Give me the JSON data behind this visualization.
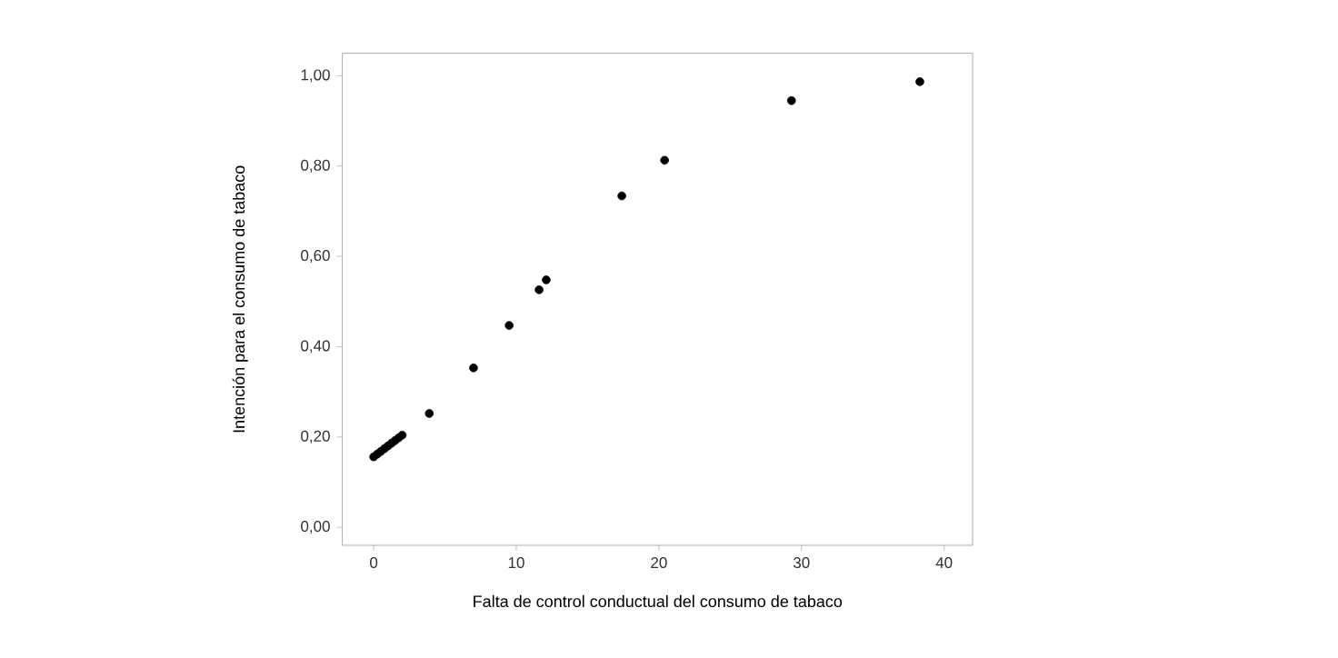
{
  "chart_data": {
    "type": "scatter",
    "xlabel": "Falta de control conductual del consumo de tabaco",
    "ylabel": "Intención para el consumo de tabaco",
    "x": [
      0,
      0.25,
      0.5,
      0.75,
      1.0,
      1.25,
      1.5,
      1.75,
      2.0,
      3.9,
      7.0,
      9.5,
      11.6,
      12.1,
      17.4,
      20.4,
      29.3,
      38.3
    ],
    "values": [
      0.156,
      0.162,
      0.168,
      0.174,
      0.18,
      0.186,
      0.192,
      0.198,
      0.204,
      0.252,
      0.353,
      0.447,
      0.526,
      0.548,
      0.734,
      0.813,
      0.945,
      0.987
    ],
    "color": "#000000",
    "marker": "circle",
    "xlim": [
      -2.2,
      42
    ],
    "xticks": [
      0,
      10,
      20,
      30,
      40
    ],
    "ylim": [
      -0.04,
      1.05
    ],
    "yticks": [
      {
        "value": 0,
        "label": "0,00"
      },
      {
        "value": 0.2,
        "label": "0,20"
      },
      {
        "value": 0.4,
        "label": "0,40"
      },
      {
        "value": 0.6,
        "label": "0,60"
      },
      {
        "value": 0.8,
        "label": "0,80"
      },
      {
        "value": 1.0,
        "label": "1,00"
      }
    ],
    "grid": false
  }
}
